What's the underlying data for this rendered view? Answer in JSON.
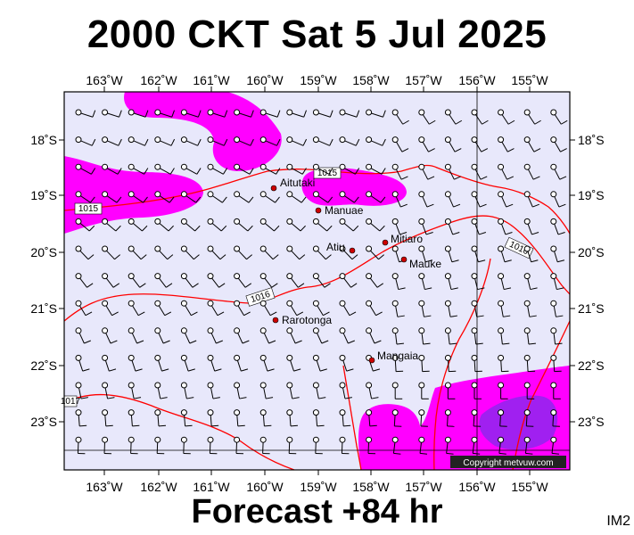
{
  "header": {
    "title": "2000 CKT Sat 5 Jul 2025"
  },
  "footer": {
    "forecast": "Forecast +84 hr",
    "code": "IM2"
  },
  "copyright": "Copyright metvuw.com",
  "colors": {
    "sea": "#e8e8fb",
    "rain_magenta": "#ff00ff",
    "rain_purple": "#a020f0",
    "isobar": "#ff0000",
    "town": "#cc0000"
  },
  "axes": {
    "lon_labels": [
      "163˚W",
      "162˚W",
      "161˚W",
      "160˚W",
      "159˚W",
      "158˚W",
      "157˚W",
      "156˚W",
      "155˚W"
    ],
    "lat_labels": [
      "18˚S",
      "19˚S",
      "20˚S",
      "21˚S",
      "22˚S",
      "23˚S"
    ]
  },
  "isobars": [
    "1015",
    "1015",
    "1016",
    "1016",
    "1017"
  ],
  "places": [
    {
      "name": "Aitutaki"
    },
    {
      "name": "Manuae"
    },
    {
      "name": "Atiu"
    },
    {
      "name": "Mitiaro"
    },
    {
      "name": "Mauke"
    },
    {
      "name": "Rarotonga"
    },
    {
      "name": "Mangaia"
    }
  ]
}
